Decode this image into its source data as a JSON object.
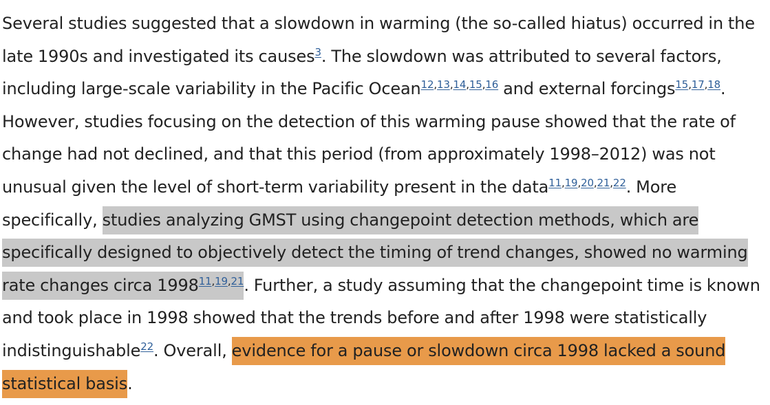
{
  "paragraph": {
    "t1": "Several studies suggested that a slowdown in warming (the so-called hiatus) occurred in the late 1990s and investigated its causes",
    "r1": [
      "3"
    ],
    "t2": ". The slowdown was attributed to several factors, including large-scale variability in the Pacific Ocean",
    "r2": [
      "12",
      "13",
      "14",
      "15",
      "16"
    ],
    "t3": " and external forcings",
    "r3": [
      "15",
      "17",
      "18"
    ],
    "t4": ". However, studies focusing on the detection of this warming pause showed that the rate of change had not declined, and that this period (from approximately 1998–2012) was not unusual given the level of short-term variability present in the data",
    "r4": [
      "11",
      "19",
      "20",
      "21",
      "22"
    ],
    "t5": ". More specifically, ",
    "h1": "studies analyzing GMST using changepoint detection methods, which are specifically designed to objectively detect the timing of trend changes, showed no warming rate changes circa 1998",
    "r5": [
      "11",
      "19",
      "21"
    ],
    "t6": ". Further, a study assuming that the changepoint time is known and took place in 1998 showed that the trends before and after 1998 were statistically indistinguishable",
    "r6": [
      "22"
    ],
    "t7": ". Overall, ",
    "h2": "evidence for a pause or slowdown circa 1998 lacked a sound statistical basis",
    "t8": "."
  },
  "colors": {
    "text": "#222222",
    "link": "#2f5f99",
    "highlight_gray": "#c8c8c8",
    "highlight_orange": "#e89a4a"
  }
}
